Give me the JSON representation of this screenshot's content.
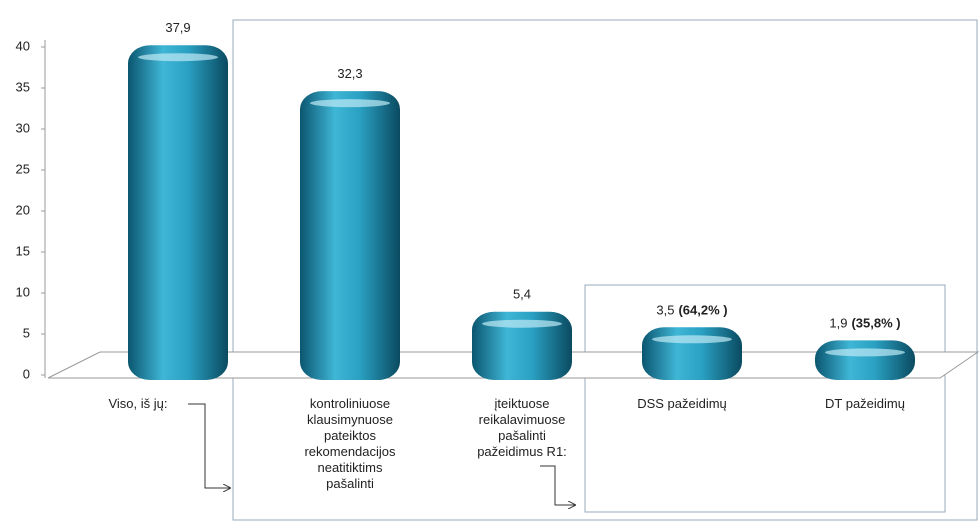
{
  "chart_data": {
    "type": "bar",
    "categories": [
      "Viso, iš jų:",
      "kontroliniuose klausimynuose pateiktos rekomendacijos neatitiktims pašalinti",
      "įteiktuose reikalavimuose pašalinti pažeidimus R1:",
      "DSS pažeidimų",
      "DT pažeidimų"
    ],
    "values": [
      37.9,
      32.3,
      5.4,
      3.5,
      1.9
    ],
    "value_labels": [
      "37,9",
      "32,3",
      "5,4",
      "3,5",
      "1,9"
    ],
    "share_values": [
      null,
      null,
      null,
      64.2,
      35.8
    ],
    "share_labels": [
      null,
      null,
      null,
      "(64,2% )",
      "(35,8% )"
    ],
    "color": "#1e8fb0",
    "ylim": [
      0,
      40
    ],
    "yticks": [
      0,
      5,
      10,
      15,
      20,
      25,
      30,
      35,
      40
    ]
  }
}
